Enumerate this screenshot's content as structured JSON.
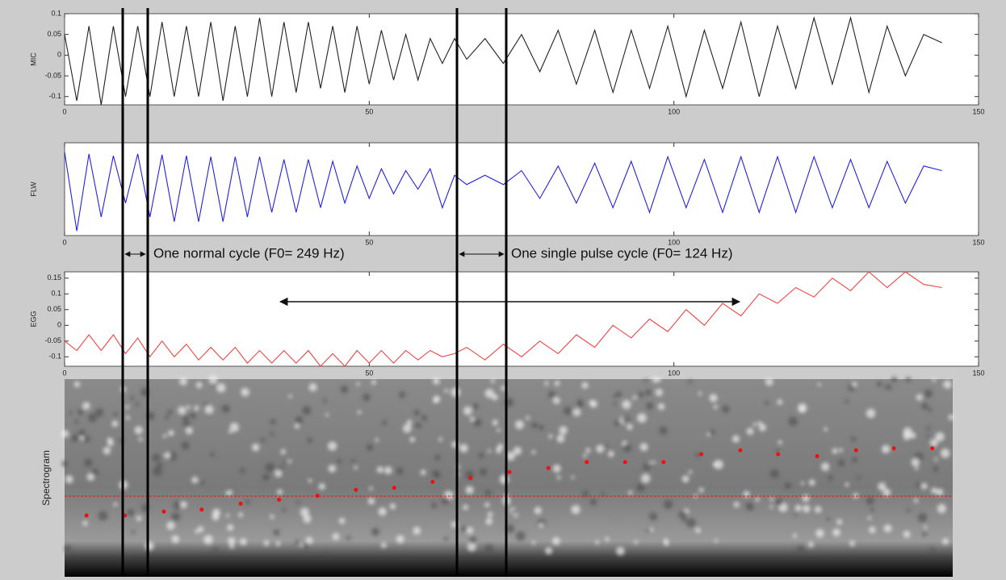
{
  "chart_data": [
    {
      "type": "line",
      "ylabel": "MIC",
      "xlim": [
        0,
        150
      ],
      "xticks": [
        0,
        50,
        100,
        150
      ],
      "ylim": [
        -0.12,
        0.1
      ],
      "yticks": [
        -0.1,
        -0.05,
        0,
        0.05,
        0.1
      ],
      "x": [
        0,
        2,
        4,
        6,
        8,
        10,
        12,
        14,
        16,
        18,
        20,
        22,
        24,
        26,
        28,
        30,
        32,
        34,
        36,
        38,
        40,
        42,
        44,
        46,
        48,
        50,
        52,
        54,
        56,
        58,
        60,
        62,
        64,
        66,
        69,
        72,
        75,
        78,
        81,
        84,
        87,
        90,
        93,
        96,
        99,
        102,
        105,
        108,
        111,
        114,
        117,
        120,
        123,
        126,
        129,
        132,
        135,
        138,
        141,
        144
      ],
      "series": [
        {
          "color": "#222222",
          "values": [
            0.05,
            -0.11,
            0.07,
            -0.12,
            0.07,
            -0.1,
            0.07,
            -0.1,
            0.08,
            -0.1,
            0.07,
            -0.1,
            0.08,
            -0.11,
            0.07,
            -0.1,
            0.09,
            -0.1,
            0.08,
            -0.09,
            0.08,
            -0.08,
            0.07,
            -0.09,
            0.07,
            -0.07,
            0.06,
            -0.06,
            0.05,
            -0.06,
            0.04,
            -0.02,
            0.04,
            -0.01,
            0.04,
            -0.02,
            0.05,
            -0.04,
            0.06,
            -0.07,
            0.06,
            -0.09,
            0.06,
            -0.08,
            0.07,
            -0.1,
            0.06,
            -0.08,
            0.08,
            -0.1,
            0.07,
            -0.08,
            0.09,
            -0.07,
            0.09,
            -0.09,
            0.07,
            -0.05,
            0.05,
            0.03
          ]
        }
      ]
    },
    {
      "type": "line",
      "ylabel": "FLW",
      "xlim": [
        0,
        150
      ],
      "xticks": [
        0,
        50,
        100,
        150
      ],
      "ylim": [
        0,
        1
      ],
      "x": [
        0,
        2,
        4,
        6,
        8,
        10,
        12,
        14,
        16,
        18,
        20,
        22,
        24,
        26,
        28,
        30,
        32,
        34,
        36,
        38,
        40,
        42,
        44,
        46,
        48,
        50,
        52,
        54,
        56,
        58,
        60,
        62,
        64,
        66,
        69,
        72,
        75,
        78,
        81,
        84,
        87,
        90,
        93,
        96,
        99,
        102,
        105,
        108,
        111,
        114,
        117,
        120,
        123,
        126,
        129,
        132,
        135,
        138,
        141,
        144
      ],
      "series": [
        {
          "color": "#2222dd",
          "values": [
            0.9,
            0.05,
            0.88,
            0.2,
            0.86,
            0.35,
            0.88,
            0.2,
            0.87,
            0.15,
            0.86,
            0.15,
            0.85,
            0.15,
            0.85,
            0.2,
            0.85,
            0.25,
            0.82,
            0.25,
            0.82,
            0.3,
            0.8,
            0.35,
            0.75,
            0.4,
            0.72,
            0.45,
            0.7,
            0.5,
            0.72,
            0.3,
            0.65,
            0.55,
            0.65,
            0.55,
            0.7,
            0.4,
            0.75,
            0.35,
            0.78,
            0.3,
            0.8,
            0.25,
            0.85,
            0.3,
            0.82,
            0.25,
            0.85,
            0.25,
            0.85,
            0.25,
            0.85,
            0.3,
            0.82,
            0.3,
            0.8,
            0.35,
            0.75,
            0.7
          ]
        }
      ],
      "annotations": [
        "One normal cycle (F0= 249 Hz)",
        "One single pulse cycle (F0= 124 Hz)"
      ]
    },
    {
      "type": "line",
      "ylabel": "EGG",
      "xlim": [
        0,
        150
      ],
      "xticks": [
        0,
        50,
        100,
        150
      ],
      "ylim": [
        -0.13,
        0.17
      ],
      "yticks": [
        -0.1,
        -0.05,
        0,
        0.05,
        0.1,
        0.15
      ],
      "x": [
        0,
        2,
        4,
        6,
        8,
        10,
        12,
        14,
        16,
        18,
        20,
        22,
        24,
        26,
        28,
        30,
        32,
        34,
        36,
        38,
        40,
        42,
        44,
        46,
        48,
        50,
        52,
        54,
        56,
        58,
        60,
        62,
        64,
        66,
        69,
        72,
        75,
        78,
        81,
        84,
        87,
        90,
        93,
        96,
        99,
        102,
        105,
        108,
        111,
        114,
        117,
        120,
        123,
        126,
        129,
        132,
        135,
        138,
        141,
        144
      ],
      "series": [
        {
          "color": "#ee4444",
          "values": [
            -0.05,
            -0.08,
            -0.03,
            -0.08,
            -0.03,
            -0.09,
            -0.04,
            -0.1,
            -0.05,
            -0.1,
            -0.06,
            -0.11,
            -0.07,
            -0.11,
            -0.07,
            -0.12,
            -0.08,
            -0.12,
            -0.08,
            -0.12,
            -0.08,
            -0.13,
            -0.09,
            -0.13,
            -0.08,
            -0.12,
            -0.08,
            -0.12,
            -0.08,
            -0.11,
            -0.08,
            -0.1,
            -0.09,
            -0.07,
            -0.11,
            -0.06,
            -0.1,
            -0.05,
            -0.09,
            -0.03,
            -0.07,
            0.0,
            -0.04,
            0.02,
            -0.02,
            0.05,
            0.0,
            0.07,
            0.03,
            0.1,
            0.07,
            0.12,
            0.09,
            0.15,
            0.11,
            0.17,
            0.12,
            0.17,
            0.13,
            0.12
          ]
        }
      ]
    },
    {
      "type": "scatter",
      "ylabel": "Spectrogram",
      "xlim": [
        0,
        150
      ],
      "ylim": [
        0,
        1
      ],
      "color": "#ee1111",
      "x": [
        3.6,
        9.9,
        16.3,
        22.5,
        28.9,
        35.2,
        41.5,
        47.8,
        54.1,
        60.4,
        66.6,
        73.0,
        79.4,
        85.7,
        92.0,
        98.3,
        104.5,
        110.9,
        117.1,
        123.5,
        129.9,
        136.1,
        142.4
      ],
      "values": [
        0.31,
        0.31,
        0.33,
        0.34,
        0.37,
        0.39,
        0.41,
        0.44,
        0.45,
        0.48,
        0.5,
        0.53,
        0.55,
        0.58,
        0.58,
        0.58,
        0.62,
        0.64,
        0.62,
        0.61,
        0.64,
        0.65,
        0.65
      ]
    }
  ]
}
